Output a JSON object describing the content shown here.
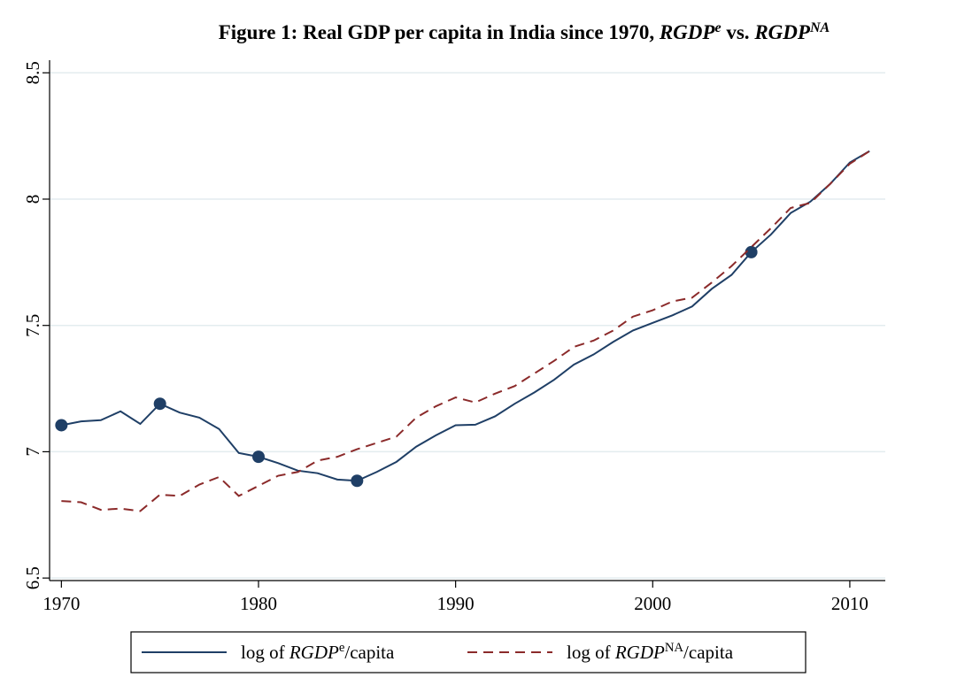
{
  "chart_data": {
    "type": "line",
    "title": [
      "Figure 1: Real GDP per capita in India since 1970, ",
      "RGDP",
      "e",
      " vs. ",
      "RGDP",
      "NA"
    ],
    "x": [
      1970,
      1971,
      1972,
      1973,
      1974,
      1975,
      1976,
      1977,
      1978,
      1979,
      1980,
      1981,
      1982,
      1983,
      1984,
      1985,
      1986,
      1987,
      1988,
      1989,
      1990,
      1991,
      1992,
      1993,
      1994,
      1995,
      1996,
      1997,
      1998,
      1999,
      2000,
      2001,
      2002,
      2003,
      2004,
      2005,
      2006,
      2007,
      2008,
      2009,
      2010,
      2011
    ],
    "series": [
      {
        "name": [
          "log of ",
          "RGDP",
          "e",
          "/capita"
        ],
        "color": "#1f3f66",
        "dash": false,
        "values": [
          7.105,
          7.12,
          7.125,
          7.16,
          7.11,
          7.19,
          7.155,
          7.135,
          7.09,
          6.995,
          6.98,
          6.955,
          6.925,
          6.915,
          6.89,
          6.885,
          6.92,
          6.96,
          7.02,
          7.065,
          7.105,
          7.107,
          7.14,
          7.19,
          7.235,
          7.285,
          7.345,
          7.385,
          7.435,
          7.48,
          7.51,
          7.54,
          7.575,
          7.645,
          7.7,
          7.79,
          7.86,
          7.945,
          7.99,
          8.06,
          8.145,
          8.19
        ],
        "marker_x": [
          1970,
          1975,
          1980,
          1985,
          2005
        ]
      },
      {
        "name": [
          "log of ",
          "RGDP",
          "NA",
          "/capita"
        ],
        "color": "#8b2a2a",
        "dash": true,
        "values": [
          6.805,
          6.8,
          6.77,
          6.775,
          6.765,
          6.83,
          6.825,
          6.87,
          6.9,
          6.825,
          6.865,
          6.905,
          6.92,
          6.965,
          6.98,
          7.01,
          7.035,
          7.06,
          7.135,
          7.18,
          7.215,
          7.195,
          7.23,
          7.26,
          7.31,
          7.36,
          7.415,
          7.44,
          7.48,
          7.535,
          7.56,
          7.595,
          7.61,
          7.67,
          7.735,
          7.81,
          7.885,
          7.965,
          7.985,
          8.06,
          8.14,
          8.19
        ]
      }
    ],
    "xlim": [
      1969.4,
      2011.8
    ],
    "xticks": [
      1970,
      1980,
      1990,
      2000,
      2010
    ],
    "ylim": [
      6.49,
      8.55
    ],
    "yticks": [
      6.5,
      7,
      7.5,
      8,
      8.5
    ],
    "grid": true
  }
}
